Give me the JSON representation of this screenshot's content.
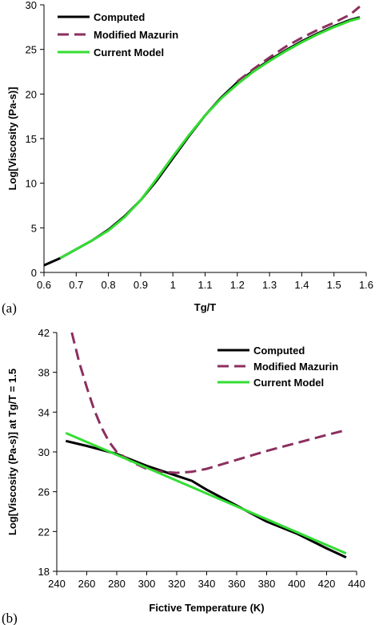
{
  "chart_data": [
    {
      "type": "line",
      "panel_label": "(a)",
      "xlabel": "Tg/T",
      "ylabel": "Log[Viscosity (Pa-s)]",
      "xlim": [
        0.6,
        1.6
      ],
      "ylim": [
        0,
        30
      ],
      "xticks": [
        0.6,
        0.7,
        0.8,
        0.9,
        1.0,
        1.1,
        1.2,
        1.3,
        1.4,
        1.5,
        1.6
      ],
      "xtick_labels": [
        "0.6",
        "0.7",
        "0.8",
        "0.9",
        "1",
        "1.1",
        "1.2",
        "1.3",
        "1.4",
        "1.5",
        "1.6"
      ],
      "yticks": [
        0,
        5,
        10,
        15,
        20,
        25,
        30
      ],
      "ytick_labels": [
        "0",
        "5",
        "10",
        "15",
        "20",
        "25",
        "30"
      ],
      "grid": false,
      "legend_position": "top-left",
      "series": [
        {
          "name": "Computed",
          "color": "#000000",
          "dash": "solid",
          "x": [
            0.6,
            0.65,
            0.7,
            0.75,
            0.8,
            0.85,
            0.9,
            0.95,
            1.0,
            1.05,
            1.1,
            1.15,
            1.2,
            1.25,
            1.3,
            1.35,
            1.4,
            1.45,
            1.5,
            1.55,
            1.58
          ],
          "y": [
            0.8,
            1.6,
            2.6,
            3.6,
            4.8,
            6.3,
            8.1,
            10.3,
            12.8,
            15.3,
            17.6,
            19.6,
            21.3,
            22.6,
            23.8,
            24.9,
            25.9,
            26.8,
            27.6,
            28.3,
            28.6
          ]
        },
        {
          "name": "Modified Mazurin",
          "color": "#8B2F5E",
          "dash": "dashed",
          "x": [
            1.2,
            1.25,
            1.3,
            1.35,
            1.4,
            1.45,
            1.5,
            1.55,
            1.58
          ],
          "y": [
            21.4,
            22.8,
            24.1,
            25.3,
            26.3,
            27.2,
            28.0,
            28.9,
            29.8
          ]
        },
        {
          "name": "Current Model",
          "color": "#33DD33",
          "dash": "solid",
          "x": [
            0.65,
            0.7,
            0.75,
            0.8,
            0.85,
            0.9,
            0.95,
            1.0,
            1.05,
            1.1,
            1.15,
            1.2,
            1.25,
            1.3,
            1.35,
            1.4,
            1.45,
            1.5,
            1.55,
            1.58
          ],
          "y": [
            1.6,
            2.6,
            3.6,
            4.7,
            6.2,
            8.1,
            10.5,
            13.0,
            15.4,
            17.6,
            19.5,
            21.1,
            22.5,
            23.7,
            24.8,
            25.8,
            26.7,
            27.5,
            28.2,
            28.5
          ]
        }
      ]
    },
    {
      "type": "line",
      "panel_label": "(b)",
      "xlabel": "Fictive Temperature (K)",
      "ylabel": "Log[Viscosity (Pa-s)] at Tg/T = 1.5",
      "xlim": [
        240,
        440
      ],
      "ylim": [
        18,
        42
      ],
      "xticks": [
        240,
        260,
        280,
        300,
        320,
        340,
        360,
        380,
        400,
        420,
        440
      ],
      "xtick_labels": [
        "240",
        "260",
        "280",
        "300",
        "320",
        "340",
        "360",
        "380",
        "400",
        "420",
        "440"
      ],
      "yticks": [
        18,
        22,
        26,
        30,
        34,
        38,
        42
      ],
      "ytick_labels": [
        "18",
        "22",
        "26",
        "30",
        "34",
        "38",
        "42"
      ],
      "grid": false,
      "legend_position": "top-right",
      "series": [
        {
          "name": "Computed",
          "color": "#000000",
          "dash": "solid",
          "x": [
            246,
            260,
            280,
            300,
            320,
            330,
            340,
            360,
            380,
            400,
            420,
            433
          ],
          "y": [
            31.1,
            30.6,
            29.8,
            28.6,
            27.6,
            27.1,
            26.2,
            24.6,
            23.0,
            21.8,
            20.3,
            19.4
          ]
        },
        {
          "name": "Modified Mazurin",
          "color": "#8B2F5E",
          "dash": "dashed",
          "x": [
            250,
            255,
            260,
            265,
            270,
            275,
            280,
            290,
            300,
            310,
            320,
            330,
            340,
            360,
            380,
            400,
            420,
            433
          ],
          "y": [
            42.0,
            39.0,
            36.5,
            34.2,
            32.4,
            31.0,
            30.0,
            29.0,
            28.3,
            28.0,
            27.9,
            28.0,
            28.3,
            29.2,
            30.1,
            30.9,
            31.7,
            32.2
          ]
        },
        {
          "name": "Current Model",
          "color": "#33DD33",
          "dash": "solid",
          "x": [
            246,
            433
          ],
          "y": [
            31.9,
            19.8
          ]
        }
      ]
    }
  ]
}
